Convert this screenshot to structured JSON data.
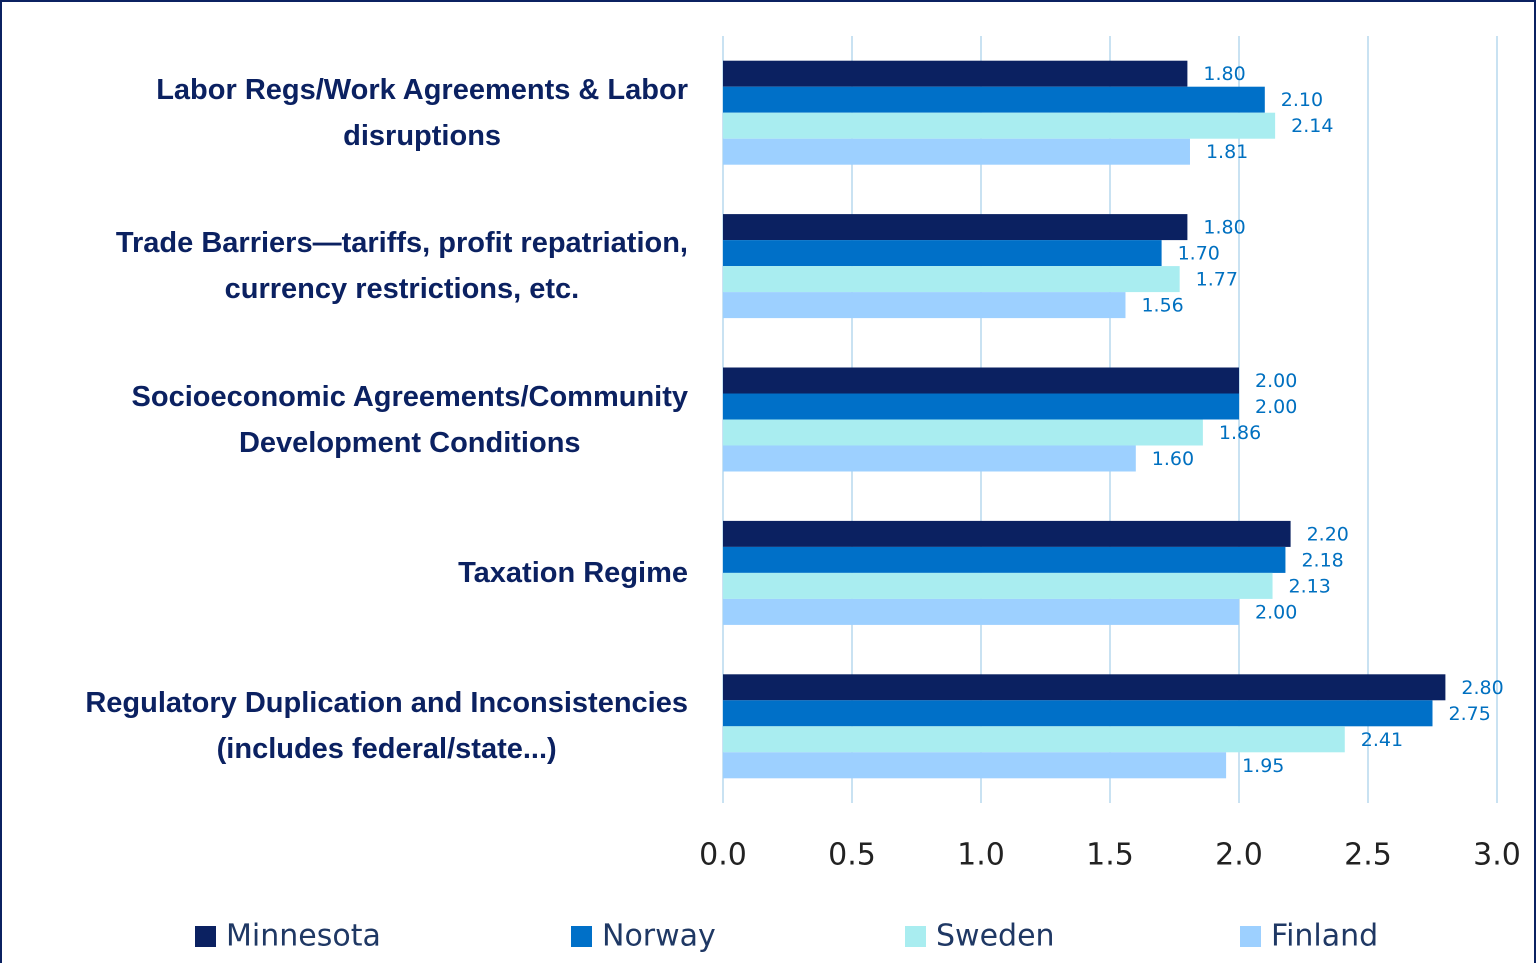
{
  "chart_data": {
    "type": "bar",
    "orientation": "horizontal",
    "categories": [
      [
        "Labor Regs/Work Agreements & Labor",
        "disruptions"
      ],
      [
        "Trade Barriers—tariffs, profit repatriation,",
        "currency restrictions, etc."
      ],
      [
        "Socioeconomic Agreements/Community",
        "Development Conditions"
      ],
      [
        "Taxation Regime"
      ],
      [
        "Regulatory Duplication and Inconsistencies",
        "(includes federal/state...)"
      ]
    ],
    "series": [
      {
        "name": "Minnesota",
        "color": "#0b2161",
        "values": [
          1.8,
          1.8,
          2.0,
          2.2,
          2.8
        ],
        "value_labels": [
          "1.80",
          "1.80",
          "2.00",
          "2.20",
          "2.80"
        ]
      },
      {
        "name": "Norway",
        "color": "#0070c8",
        "values": [
          2.1,
          1.7,
          2.0,
          2.18,
          2.75
        ],
        "value_labels": [
          "2.10",
          "1.70",
          "2.00",
          "2.18",
          "2.75"
        ]
      },
      {
        "name": "Sweden",
        "color": "#a9edf0",
        "values": [
          2.14,
          1.77,
          1.86,
          2.13,
          2.41
        ],
        "value_labels": [
          "2.14",
          "1.77",
          "1.86",
          "2.13",
          "2.41"
        ]
      },
      {
        "name": "Finland",
        "color": "#9dd0ff",
        "values": [
          1.81,
          1.56,
          1.6,
          2.0,
          1.95
        ],
        "value_labels": [
          "1.81",
          "1.56",
          "1.60",
          "2.00",
          "1.95"
        ]
      }
    ],
    "xlim": [
      0,
      3
    ],
    "xticks": [
      {
        "value": 0,
        "label": "0.0"
      },
      {
        "value": 0.5,
        "label": "0.5"
      },
      {
        "value": 1,
        "label": "1.0"
      },
      {
        "value": 1.5,
        "label": "1.5"
      },
      {
        "value": 2,
        "label": "2.0"
      },
      {
        "value": 2.5,
        "label": "2.5"
      },
      {
        "value": 3,
        "label": "3.0"
      }
    ],
    "grid": true,
    "legend": "bottom"
  }
}
